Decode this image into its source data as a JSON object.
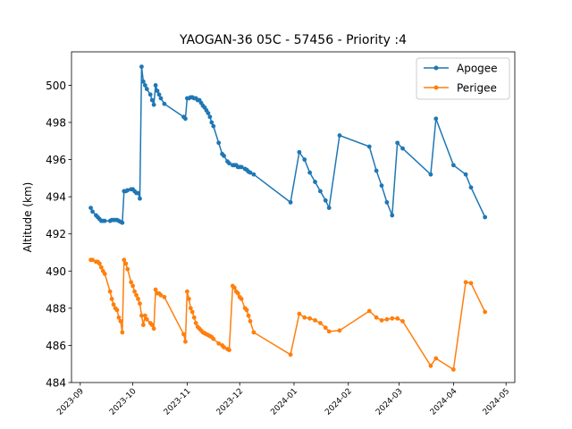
{
  "chart_data": {
    "type": "line",
    "title": "YAOGAN-36 05C - 57456 - Priority :4",
    "xlabel": "",
    "ylabel": "Altitude (km)",
    "ylim": [
      484,
      501.8
    ],
    "xlim": [
      "2023-09-01",
      "2024-05-01"
    ],
    "yticks": [
      484,
      486,
      488,
      490,
      492,
      494,
      496,
      498,
      500
    ],
    "xticks": [
      "2023-09",
      "2023-10",
      "2023-11",
      "2023-12",
      "2024-01",
      "2024-02",
      "2024-03",
      "2024-04",
      "2024-05"
    ],
    "grid": false,
    "legend": "top-right",
    "colors": {
      "apogee": "#1f77b4",
      "perigee": "#ff7f0e"
    },
    "series": [
      {
        "name": "Apogee",
        "color": "#1f77b4",
        "points": [
          [
            "2023-09-07",
            493.4
          ],
          [
            "2023-09-08",
            493.2
          ],
          [
            "2023-09-10",
            493.0
          ],
          [
            "2023-09-11",
            492.9
          ],
          [
            "2023-09-12",
            492.8
          ],
          [
            "2023-09-13",
            492.7
          ],
          [
            "2023-09-14",
            492.7
          ],
          [
            "2023-09-15",
            492.7
          ],
          [
            "2023-09-18",
            492.7
          ],
          [
            "2023-09-19",
            492.75
          ],
          [
            "2023-09-20",
            492.75
          ],
          [
            "2023-09-21",
            492.75
          ],
          [
            "2023-09-22",
            492.75
          ],
          [
            "2023-09-23",
            492.7
          ],
          [
            "2023-09-24",
            492.65
          ],
          [
            "2023-09-25",
            492.6
          ],
          [
            "2023-09-26",
            494.3
          ],
          [
            "2023-09-27",
            494.3
          ],
          [
            "2023-09-28",
            494.35
          ],
          [
            "2023-09-30",
            494.4
          ],
          [
            "2023-10-01",
            494.4
          ],
          [
            "2023-10-02",
            494.3
          ],
          [
            "2023-10-03",
            494.2
          ],
          [
            "2023-10-04",
            494.2
          ],
          [
            "2023-10-05",
            493.9
          ],
          [
            "2023-10-06",
            501.0
          ],
          [
            "2023-10-07",
            500.2
          ],
          [
            "2023-10-08",
            500.0
          ],
          [
            "2023-10-09",
            499.8
          ],
          [
            "2023-10-11",
            499.5
          ],
          [
            "2023-10-12",
            499.2
          ],
          [
            "2023-10-13",
            498.95
          ],
          [
            "2023-10-14",
            500.0
          ],
          [
            "2023-10-15",
            499.7
          ],
          [
            "2023-10-16",
            499.5
          ],
          [
            "2023-10-17",
            499.3
          ],
          [
            "2023-10-19",
            499.0
          ],
          [
            "2023-10-30",
            498.3
          ],
          [
            "2023-10-31",
            498.2
          ],
          [
            "2023-11-01",
            499.3
          ],
          [
            "2023-11-02",
            499.3
          ],
          [
            "2023-11-03",
            499.35
          ],
          [
            "2023-11-04",
            499.35
          ],
          [
            "2023-11-05",
            499.3
          ],
          [
            "2023-11-06",
            499.3
          ],
          [
            "2023-11-07",
            499.2
          ],
          [
            "2023-11-08",
            499.2
          ],
          [
            "2023-11-09",
            499.05
          ],
          [
            "2023-11-10",
            498.9
          ],
          [
            "2023-11-11",
            498.8
          ],
          [
            "2023-11-12",
            498.65
          ],
          [
            "2023-11-13",
            498.5
          ],
          [
            "2023-11-14",
            498.3
          ],
          [
            "2023-11-15",
            498.0
          ],
          [
            "2023-11-16",
            497.8
          ],
          [
            "2023-11-19",
            496.9
          ],
          [
            "2023-11-21",
            496.3
          ],
          [
            "2023-11-22",
            496.2
          ],
          [
            "2023-11-24",
            495.9
          ],
          [
            "2023-11-25",
            495.8
          ],
          [
            "2023-11-27",
            495.7
          ],
          [
            "2023-11-28",
            495.7
          ],
          [
            "2023-11-29",
            495.7
          ],
          [
            "2023-11-30",
            495.6
          ],
          [
            "2023-12-01",
            495.6
          ],
          [
            "2023-12-02",
            495.6
          ],
          [
            "2023-12-04",
            495.5
          ],
          [
            "2023-12-05",
            495.45
          ],
          [
            "2023-12-06",
            495.35
          ],
          [
            "2023-12-07",
            495.3
          ],
          [
            "2023-12-09",
            495.2
          ],
          [
            "2023-12-30",
            493.7
          ],
          [
            "2024-01-04",
            496.4
          ],
          [
            "2024-01-07",
            496.0
          ],
          [
            "2024-01-10",
            495.3
          ],
          [
            "2024-01-13",
            494.8
          ],
          [
            "2024-01-16",
            494.3
          ],
          [
            "2024-01-19",
            493.8
          ],
          [
            "2024-01-21",
            493.4
          ],
          [
            "2024-01-27",
            497.3
          ],
          [
            "2024-02-13",
            496.7
          ],
          [
            "2024-02-17",
            495.4
          ],
          [
            "2024-02-20",
            494.6
          ],
          [
            "2024-02-23",
            493.7
          ],
          [
            "2024-02-26",
            493.0
          ],
          [
            "2024-02-29",
            496.9
          ],
          [
            "2024-03-03",
            496.6
          ],
          [
            "2024-03-19",
            495.2
          ],
          [
            "2024-03-22",
            498.2
          ],
          [
            "2024-04-01",
            495.7
          ],
          [
            "2024-04-08",
            495.2
          ],
          [
            "2024-04-11",
            494.5
          ],
          [
            "2024-04-19",
            492.9
          ]
        ]
      },
      {
        "name": "Perigee",
        "color": "#ff7f0e",
        "points": [
          [
            "2023-09-07",
            490.6
          ],
          [
            "2023-09-08",
            490.6
          ],
          [
            "2023-09-10",
            490.5
          ],
          [
            "2023-09-11",
            490.5
          ],
          [
            "2023-09-12",
            490.4
          ],
          [
            "2023-09-13",
            490.2
          ],
          [
            "2023-09-14",
            490.0
          ],
          [
            "2023-09-15",
            489.85
          ],
          [
            "2023-09-18",
            488.9
          ],
          [
            "2023-09-19",
            488.5
          ],
          [
            "2023-09-20",
            488.2
          ],
          [
            "2023-09-21",
            488.0
          ],
          [
            "2023-09-22",
            487.9
          ],
          [
            "2023-09-23",
            487.5
          ],
          [
            "2023-09-24",
            487.3
          ],
          [
            "2023-09-25",
            486.7
          ],
          [
            "2023-09-26",
            490.6
          ],
          [
            "2023-09-27",
            490.4
          ],
          [
            "2023-09-28",
            490.1
          ],
          [
            "2023-09-30",
            489.4
          ],
          [
            "2023-10-01",
            489.2
          ],
          [
            "2023-10-02",
            488.9
          ],
          [
            "2023-10-03",
            488.7
          ],
          [
            "2023-10-04",
            488.5
          ],
          [
            "2023-10-05",
            488.25
          ],
          [
            "2023-10-06",
            487.6
          ],
          [
            "2023-10-07",
            487.1
          ],
          [
            "2023-10-08",
            487.6
          ],
          [
            "2023-10-09",
            487.4
          ],
          [
            "2023-10-11",
            487.2
          ],
          [
            "2023-10-12",
            487.1
          ],
          [
            "2023-10-13",
            486.9
          ],
          [
            "2023-10-14",
            489.0
          ],
          [
            "2023-10-15",
            488.8
          ],
          [
            "2023-10-16",
            488.8
          ],
          [
            "2023-10-17",
            488.7
          ],
          [
            "2023-10-19",
            488.6
          ],
          [
            "2023-10-30",
            486.6
          ],
          [
            "2023-10-31",
            486.2
          ],
          [
            "2023-11-01",
            488.9
          ],
          [
            "2023-11-02",
            488.5
          ],
          [
            "2023-11-03",
            488.0
          ],
          [
            "2023-11-04",
            487.8
          ],
          [
            "2023-11-05",
            487.5
          ],
          [
            "2023-11-06",
            487.2
          ],
          [
            "2023-11-07",
            487.0
          ],
          [
            "2023-11-08",
            486.9
          ],
          [
            "2023-11-09",
            486.8
          ],
          [
            "2023-11-10",
            486.7
          ],
          [
            "2023-11-11",
            486.65
          ],
          [
            "2023-11-12",
            486.6
          ],
          [
            "2023-11-13",
            486.55
          ],
          [
            "2023-11-14",
            486.5
          ],
          [
            "2023-11-15",
            486.45
          ],
          [
            "2023-11-16",
            486.35
          ],
          [
            "2023-11-19",
            486.1
          ],
          [
            "2023-11-21",
            486.0
          ],
          [
            "2023-11-22",
            485.9
          ],
          [
            "2023-11-24",
            485.8
          ],
          [
            "2023-11-25",
            485.75
          ],
          [
            "2023-11-27",
            489.2
          ],
          [
            "2023-11-28",
            489.1
          ],
          [
            "2023-11-29",
            488.9
          ],
          [
            "2023-11-30",
            488.8
          ],
          [
            "2023-12-01",
            488.6
          ],
          [
            "2023-12-02",
            488.5
          ],
          [
            "2023-12-04",
            488.0
          ],
          [
            "2023-12-05",
            487.9
          ],
          [
            "2023-12-06",
            487.6
          ],
          [
            "2023-12-07",
            487.3
          ],
          [
            "2023-12-09",
            486.7
          ],
          [
            "2023-12-30",
            485.5
          ],
          [
            "2024-01-04",
            487.7
          ],
          [
            "2024-01-07",
            487.5
          ],
          [
            "2024-01-10",
            487.45
          ],
          [
            "2024-01-13",
            487.35
          ],
          [
            "2024-01-16",
            487.2
          ],
          [
            "2024-01-19",
            486.95
          ],
          [
            "2024-01-21",
            486.75
          ],
          [
            "2024-01-27",
            486.8
          ],
          [
            "2024-02-13",
            487.85
          ],
          [
            "2024-02-17",
            487.5
          ],
          [
            "2024-02-20",
            487.35
          ],
          [
            "2024-02-23",
            487.4
          ],
          [
            "2024-02-26",
            487.45
          ],
          [
            "2024-02-29",
            487.45
          ],
          [
            "2024-03-03",
            487.3
          ],
          [
            "2024-03-19",
            484.9
          ],
          [
            "2024-03-22",
            485.3
          ],
          [
            "2024-04-01",
            484.7
          ],
          [
            "2024-04-08",
            489.4
          ],
          [
            "2024-04-11",
            489.35
          ],
          [
            "2024-04-19",
            487.8
          ]
        ]
      }
    ]
  }
}
